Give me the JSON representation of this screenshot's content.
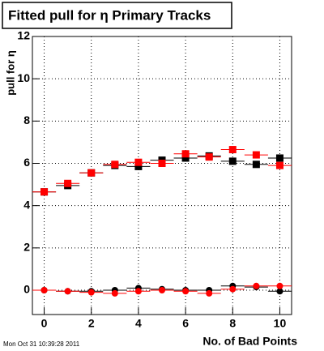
{
  "chart_data": {
    "type": "scatter",
    "title": "Fitted pull for  η Primary Tracks",
    "y_label": "pull for η",
    "x_label": "No. of Bad Points",
    "footer": "Mon Oct 31 10:39:28 2011",
    "x": [
      0,
      1,
      2,
      3,
      4,
      5,
      6,
      7,
      8,
      9,
      10
    ],
    "series": [
      {
        "color": "#000000",
        "marker": "square",
        "values": [
          4.65,
          4.95,
          5.55,
          5.9,
          5.85,
          6.15,
          6.25,
          6.35,
          6.1,
          5.95,
          6.25
        ]
      },
      {
        "color": "#ff0000",
        "marker": "square",
        "values": [
          4.65,
          5.05,
          5.55,
          5.95,
          6.05,
          6.0,
          6.45,
          6.3,
          6.65,
          6.4,
          5.9
        ]
      },
      {
        "color": "#000000",
        "marker": "circle",
        "values": [
          0.0,
          -0.05,
          -0.05,
          0.0,
          0.1,
          0.05,
          0.0,
          0.0,
          0.2,
          0.15,
          -0.05
        ]
      },
      {
        "color": "#ff0000",
        "marker": "circle",
        "values": [
          0.0,
          -0.05,
          -0.1,
          -0.15,
          -0.05,
          0.0,
          -0.05,
          -0.15,
          0.05,
          0.2,
          0.2
        ]
      }
    ],
    "xlim": [
      -0.5,
      10.5
    ],
    "ylim": [
      -1.15,
      12
    ],
    "xticks": [
      0,
      2,
      4,
      6,
      8,
      10
    ],
    "yticks": [
      0,
      2,
      4,
      6,
      8,
      10,
      12
    ],
    "grid": true
  }
}
